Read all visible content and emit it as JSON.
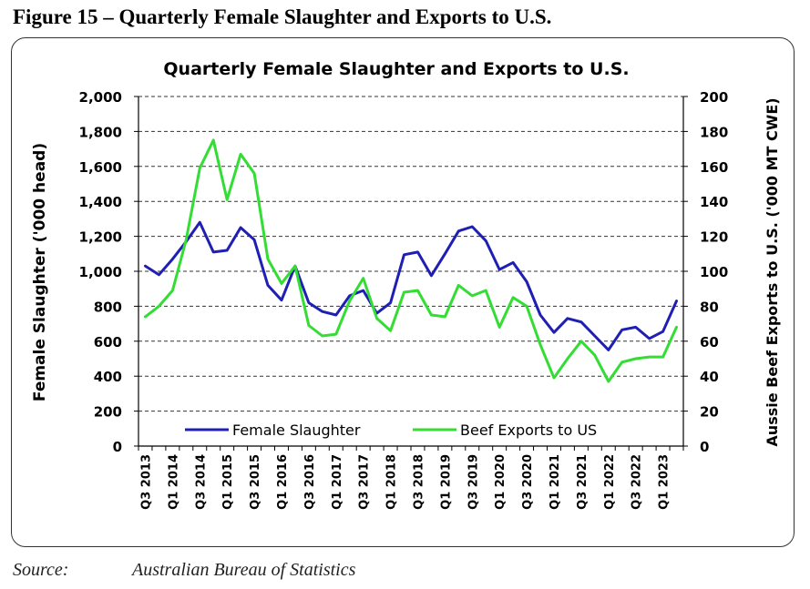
{
  "figure_title": "Figure 15 – Quarterly Female Slaughter and Exports to U.S.",
  "source_label": "Source:",
  "source_text": "Australian Bureau of Statistics",
  "chart_data": {
    "type": "line",
    "title": "Quarterly Female Slaughter and Exports to U.S.",
    "ylabel": "Female Slaughter ('000 head)",
    "y2label": "Aussie Beef Exports to U.S. ('000 MT CWE)",
    "ylim": [
      0,
      2000
    ],
    "y2lim": [
      0,
      200
    ],
    "yticks": [
      "0",
      "200",
      "400",
      "600",
      "800",
      "1,000",
      "1,200",
      "1,400",
      "1,600",
      "1,800",
      "2,000"
    ],
    "y2ticks": [
      "0",
      "20",
      "40",
      "60",
      "80",
      "100",
      "120",
      "140",
      "160",
      "180",
      "200"
    ],
    "grid": "horizontal dashed",
    "legend_position": "bottom",
    "x": [
      "Q3 2013",
      "Q4 2013",
      "Q1 2014",
      "Q2 2014",
      "Q3 2014",
      "Q4 2014",
      "Q1 2015",
      "Q2 2015",
      "Q3 2015",
      "Q4 2015",
      "Q1 2016",
      "Q2 2016",
      "Q3 2016",
      "Q4 2016",
      "Q1 2017",
      "Q2 2017",
      "Q3 2017",
      "Q4 2017",
      "Q1 2018",
      "Q2 2018",
      "Q3 2018",
      "Q4 2018",
      "Q1 2019",
      "Q2 2019",
      "Q3 2019",
      "Q4 2019",
      "Q1 2020",
      "Q2 2020",
      "Q3 2020",
      "Q4 2020",
      "Q1 2021",
      "Q2 2021",
      "Q3 2021",
      "Q4 2021",
      "Q1 2022",
      "Q2 2022",
      "Q3 2022",
      "Q4 2022",
      "Q1 2023",
      "Q2 2023"
    ],
    "xtick_labels": [
      "Q3 2013",
      "Q1 2014",
      "Q3 2014",
      "Q1 2015",
      "Q3 2015",
      "Q1 2016",
      "Q3 2016",
      "Q1 2017",
      "Q3 2017",
      "Q1 2018",
      "Q3 2018",
      "Q1 2019",
      "Q3 2019",
      "Q1 2020",
      "Q3 2020",
      "Q1 2021",
      "Q3 2021",
      "Q1 2022",
      "Q3 2022",
      "Q1 2023"
    ],
    "series": [
      {
        "name": "Female Slaughter",
        "axis": "left",
        "color": "#1f1fb4",
        "values": [
          1030,
          980,
          1070,
          1170,
          1280,
          1110,
          1120,
          1250,
          1180,
          920,
          835,
          1030,
          820,
          770,
          750,
          860,
          890,
          760,
          820,
          1095,
          1110,
          975,
          1100,
          1230,
          1255,
          1175,
          1010,
          1050,
          940,
          750,
          650,
          730,
          710,
          630,
          550,
          665,
          680,
          615,
          655,
          830
        ]
      },
      {
        "name": "Beef Exports to US",
        "axis": "right",
        "color": "#33dd33",
        "values": [
          74,
          80,
          89,
          118,
          159,
          175,
          141,
          167,
          156,
          107,
          93,
          103,
          69,
          63,
          64,
          83,
          96,
          73,
          66,
          88,
          89,
          75,
          74,
          92,
          86,
          89,
          68,
          85,
          80,
          58,
          39,
          50,
          60,
          52,
          37,
          48,
          50,
          51,
          51,
          68
        ]
      }
    ]
  }
}
